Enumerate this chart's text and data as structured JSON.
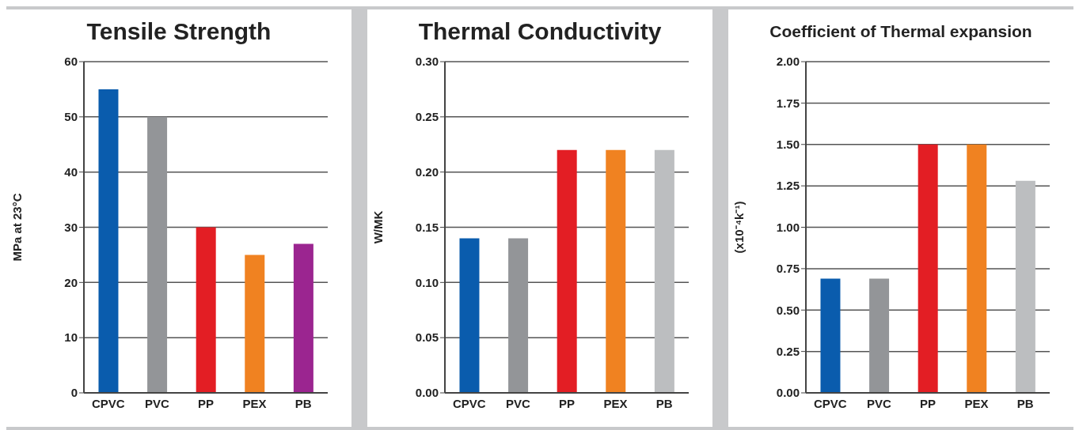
{
  "chart_data": [
    {
      "type": "bar",
      "title": "Tensile Strength",
      "ylabel": "MPa at 23°C",
      "categories": [
        "CPVC",
        "PVC",
        "PP",
        "PEX",
        "PB"
      ],
      "values": [
        55,
        50,
        30,
        25,
        27
      ],
      "colors": [
        "#0a5cad",
        "#939598",
        "#e31e24",
        "#f08221",
        "#9b2590"
      ],
      "ylim": [
        0,
        60
      ],
      "yticks": [
        0,
        10,
        20,
        30,
        40,
        50,
        60
      ],
      "grid": "y"
    },
    {
      "type": "bar",
      "title": "Thermal Conductivity",
      "ylabel": "W/MK",
      "categories": [
        "CPVC",
        "PVC",
        "PP",
        "PEX",
        "PB"
      ],
      "values": [
        0.14,
        0.14,
        0.22,
        0.22,
        0.22
      ],
      "colors": [
        "#0a5cad",
        "#939598",
        "#e31e24",
        "#f08221",
        "#bcbec0"
      ],
      "ylim": [
        0,
        0.3
      ],
      "yticks": [
        {
          "value": 0,
          "label": "0.00"
        },
        {
          "value": 0.05,
          "label": "0.05"
        },
        {
          "value": 0.1,
          "label": "0.10"
        },
        {
          "value": 0.15,
          "label": "0.15"
        },
        {
          "value": 0.2,
          "label": "0.20"
        },
        {
          "value": 0.25,
          "label": "0.25"
        },
        {
          "value": 0.3,
          "label": "0.30"
        }
      ],
      "grid": "y"
    },
    {
      "type": "bar",
      "title": "Coefficient of Thermal expansion",
      "ylabel": "(x10⁻⁴k⁻¹)",
      "categories": [
        "CPVC",
        "PVC",
        "PP",
        "PEX",
        "PB"
      ],
      "values": [
        0.69,
        0.69,
        1.5,
        1.5,
        1.28
      ],
      "colors": [
        "#0a5cad",
        "#939598",
        "#e31e24",
        "#f08221",
        "#bcbec0"
      ],
      "ylim": [
        0,
        2
      ],
      "yticks": [
        {
          "value": 0,
          "label": "0.00"
        },
        {
          "value": 0.25,
          "label": "0.25"
        },
        {
          "value": 0.5,
          "label": "0.50"
        },
        {
          "value": 0.75,
          "label": "0.75"
        },
        {
          "value": 1,
          "label": "1.00"
        },
        {
          "value": 1.25,
          "label": "1.25"
        },
        {
          "value": 1.5,
          "label": "1.50"
        },
        {
          "value": 1.75,
          "label": "1.75"
        },
        {
          "value": 2,
          "label": "2.00"
        }
      ],
      "grid": "y"
    }
  ]
}
